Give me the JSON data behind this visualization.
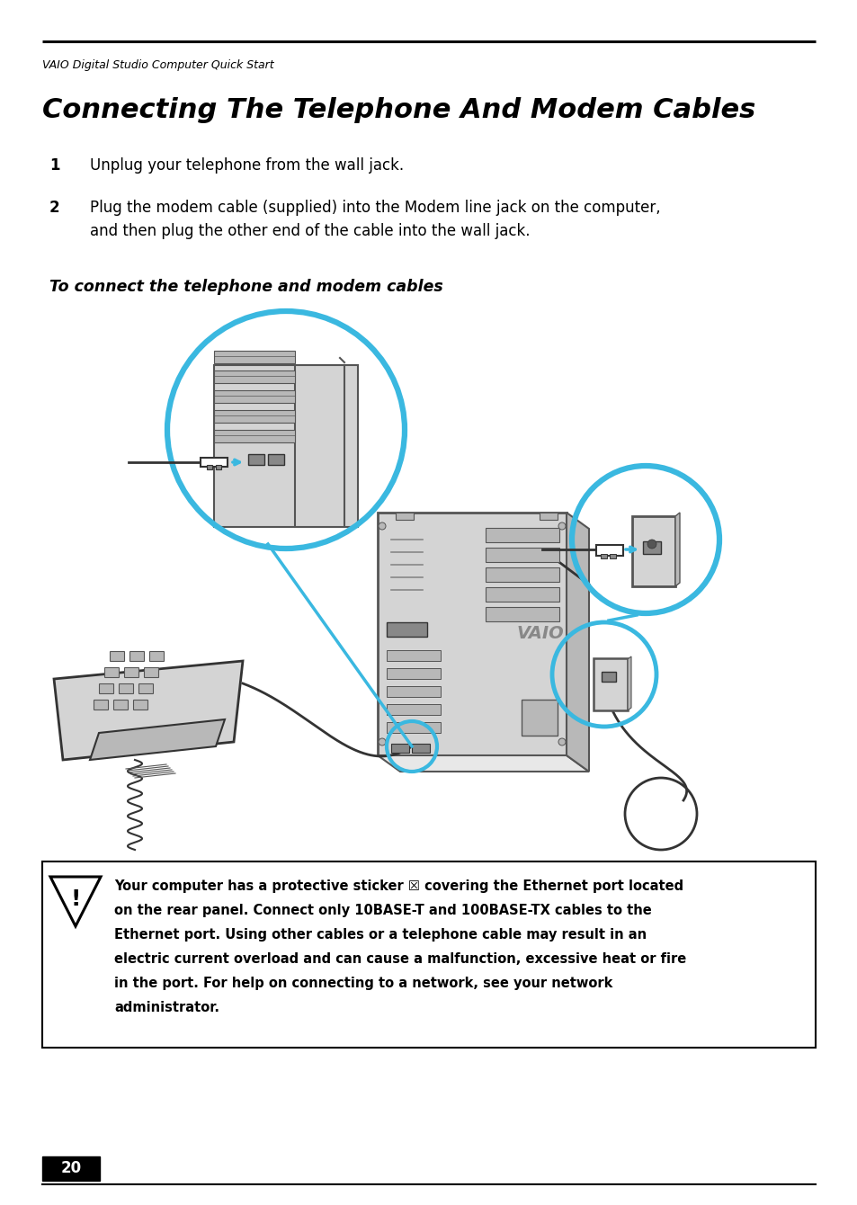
{
  "page_header": "VAIO Digital Studio Computer Quick Start",
  "title": "Connecting The Telephone And Modem Cables",
  "step1_num": "1",
  "step1_text": "Unplug your telephone from the wall jack.",
  "step2_num": "2",
  "step2_text_line1": "Plug the modem cable (supplied) into the Modem line jack on the computer,",
  "step2_text_line2": "and then plug the other end of the cable into the wall jack.",
  "caption": "To connect the telephone and modem cables",
  "warn_line1": "Your computer has a protective sticker ☒ covering the Ethernet port located",
  "warn_line2": "on the rear panel. Connect only 10BASE-T and 100BASE-TX cables to the",
  "warn_line3": "Ethernet port. Using other cables or a telephone cable may result in an",
  "warn_line4": "electric current overload and can cause a malfunction, excessive heat or fire",
  "warn_line5": "in the port. For help on connecting to a network, see your network",
  "warn_line6": "administrator.",
  "page_number": "20",
  "bg_color": "#ffffff",
  "text_color": "#000000",
  "cyan": "#3ab8e0",
  "gray1": "#d4d4d4",
  "gray2": "#b8b8b8",
  "gray3": "#888888",
  "gray4": "#555555",
  "gray5": "#333333"
}
